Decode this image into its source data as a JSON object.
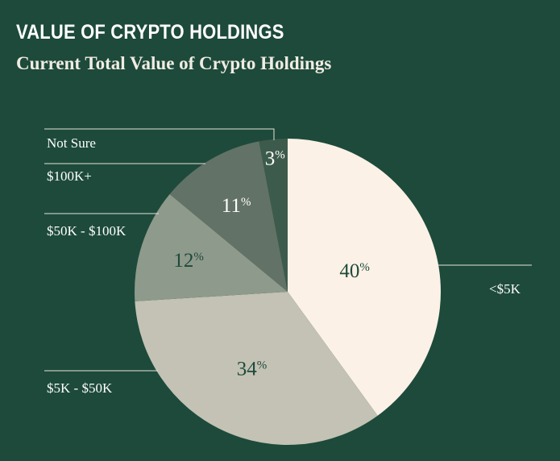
{
  "title": "VALUE OF CRYPTO HOLDINGS",
  "subtitle": "Current Total Value of Crypto Holdings",
  "chart_data": {
    "type": "pie",
    "title": "VALUE OF CRYPTO HOLDINGS",
    "subtitle": "Current Total Value of Crypto Holdings",
    "categories": [
      "<$5K",
      "$5K - $50K",
      "$50K - $100K",
      "$100K+",
      "Not Sure"
    ],
    "values": [
      40,
      34,
      12,
      11,
      3
    ],
    "value_labels": [
      "40",
      "34",
      "12",
      "11",
      "3"
    ],
    "unit": "%",
    "colors": [
      "#fbf1e6",
      "#c3c2b4",
      "#8e9a8b",
      "#627266",
      "#3d5b4c"
    ],
    "label_colors": [
      "#1d4a3b",
      "#1d4a3b",
      "#1d4a3b",
      "#ffffff",
      "#ffffff"
    ],
    "background": "#1d4a3b",
    "start_angle": "12 o'clock",
    "direction": "clockwise"
  }
}
